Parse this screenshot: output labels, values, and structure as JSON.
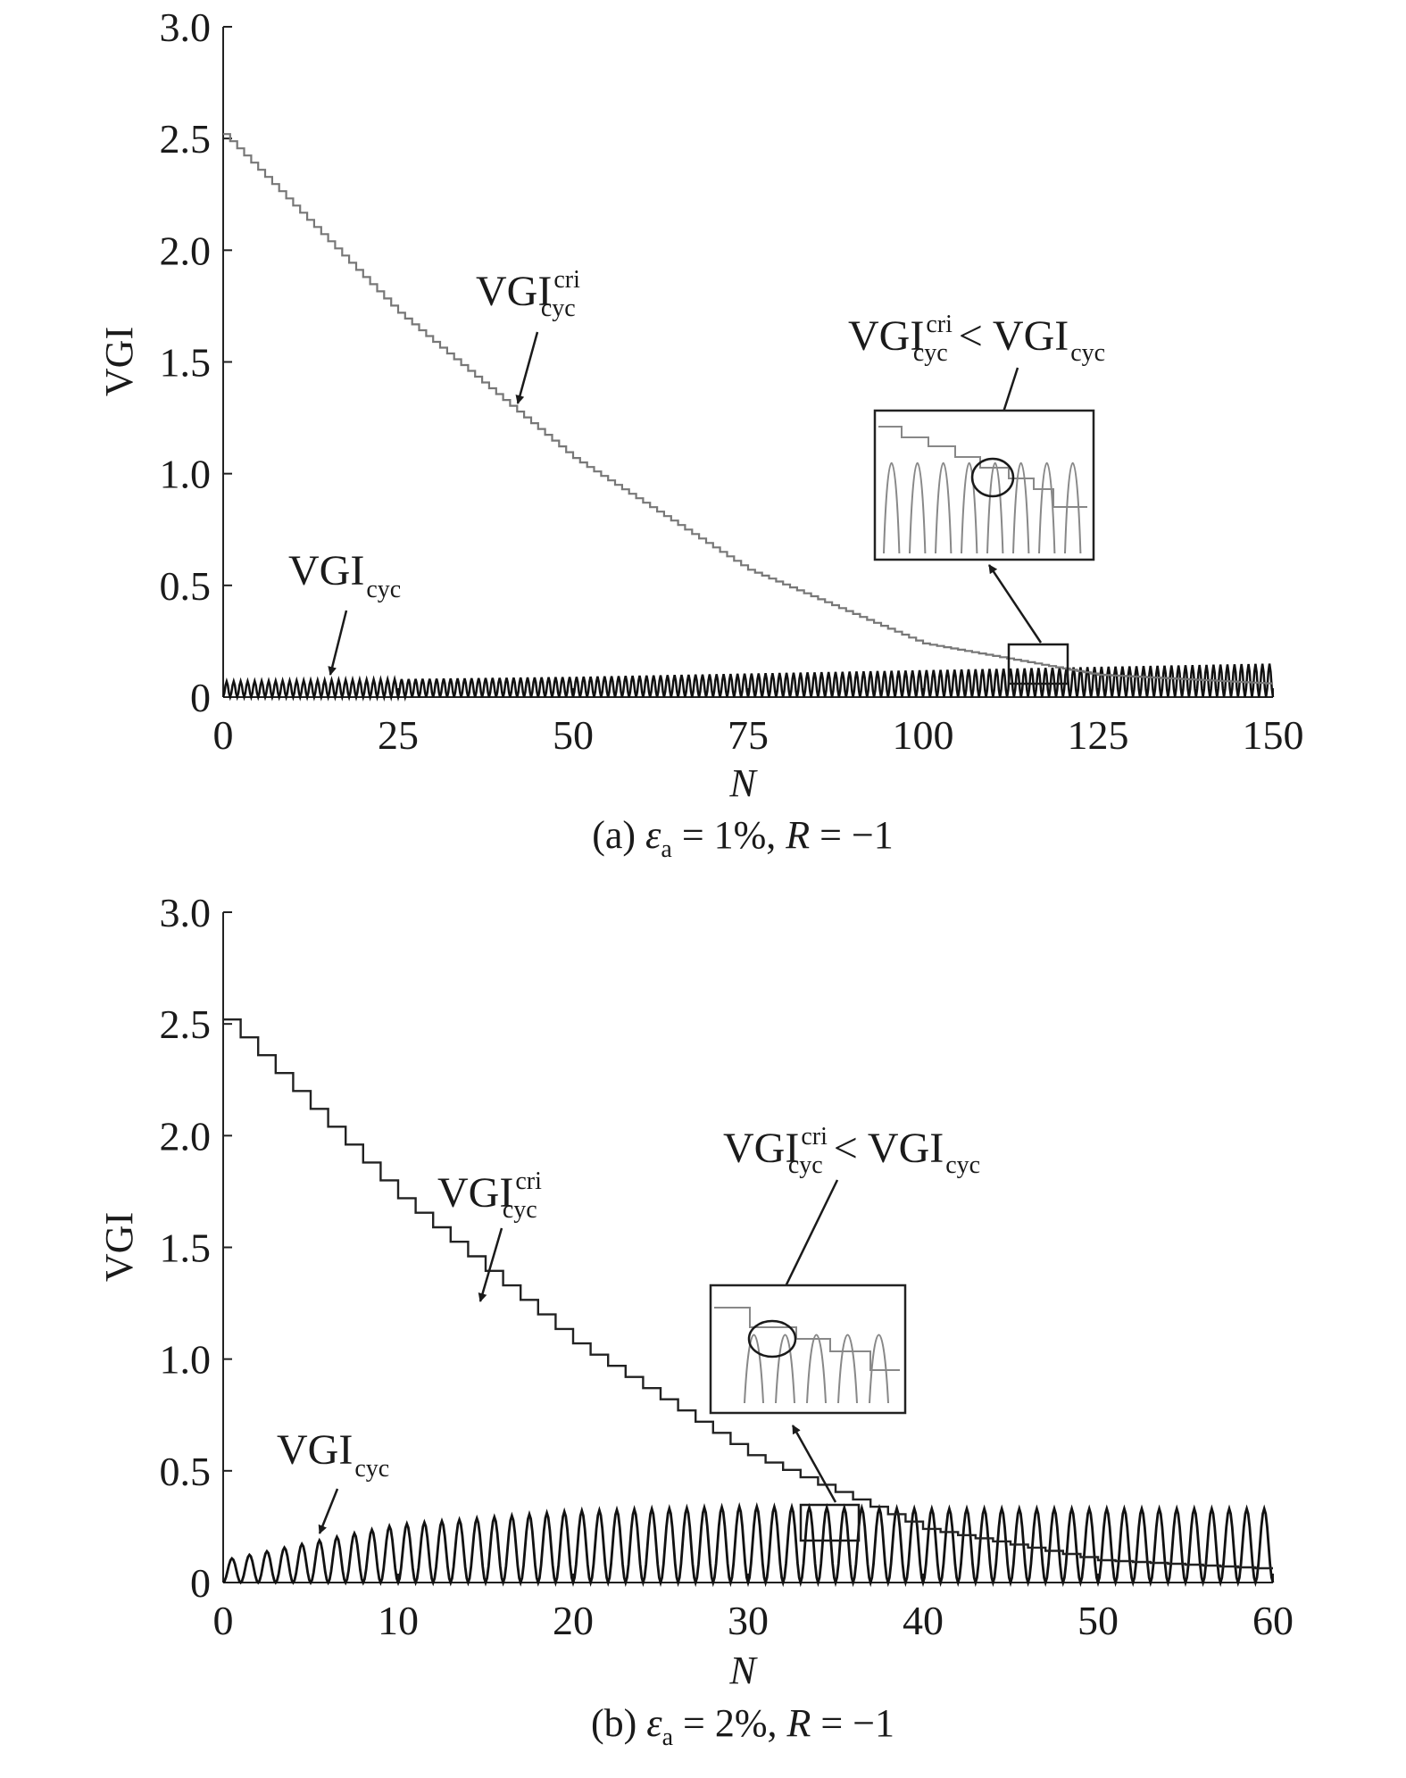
{
  "chart_data": [
    {
      "id": "a",
      "type": "line",
      "caption": {
        "prefix": "(a) ",
        "eps": "ε",
        "eps_sub": "a",
        "mid": " = 1%, ",
        "r": "R",
        "suffix": " = −1"
      },
      "xlabel": "N",
      "ylabel": "VGI",
      "xlim": [
        0,
        150
      ],
      "ylim": [
        0,
        3.0
      ],
      "xticks": [
        "0",
        "25",
        "50",
        "75",
        "100",
        "125",
        "150"
      ],
      "yticks": [
        "0",
        "0.5",
        "1.0",
        "1.5",
        "2.0",
        "2.5",
        "3.0"
      ],
      "series": [
        {
          "label_main": "VGI",
          "label_sup": "cri",
          "label_sub": "cyc",
          "style": "staircase",
          "x": [
            0,
            25,
            50,
            75,
            100,
            125,
            150
          ],
          "y": [
            2.52,
            1.72,
            1.07,
            0.57,
            0.24,
            0.1,
            0.06
          ]
        },
        {
          "label_main": "VGI",
          "label_sub": "cyc",
          "style": "oscillation",
          "amplitude_x": [
            0,
            50,
            100,
            150
          ],
          "amplitude_y": [
            0.07,
            0.09,
            0.12,
            0.15
          ]
        }
      ],
      "annotation": {
        "left_main": "VGI",
        "left_sup": "cri",
        "left_sub": "cyc",
        "op": " < ",
        "right_main": "VGI",
        "right_sub": "cyc"
      }
    },
    {
      "id": "b",
      "type": "line",
      "caption": {
        "prefix": "(b) ",
        "eps": "ε",
        "eps_sub": "a",
        "mid": " = 2%, ",
        "r": "R",
        "suffix": " = −1"
      },
      "xlabel": "N",
      "ylabel": "VGI",
      "xlim": [
        0,
        60
      ],
      "ylim": [
        0,
        3.0
      ],
      "xticks": [
        "0",
        "10",
        "20",
        "30",
        "40",
        "50",
        "60"
      ],
      "yticks": [
        "0",
        "0.5",
        "1.0",
        "1.5",
        "2.0",
        "2.5",
        "3.0"
      ],
      "series": [
        {
          "label_main": "VGI",
          "label_sup": "cri",
          "label_sub": "cyc",
          "style": "staircase",
          "x": [
            0,
            10,
            20,
            30,
            40,
            50,
            60
          ],
          "y": [
            2.52,
            1.72,
            1.07,
            0.57,
            0.24,
            0.1,
            0.06
          ]
        },
        {
          "label_main": "VGI",
          "label_sub": "cyc",
          "style": "oscillation",
          "amplitude_x": [
            0,
            10,
            20,
            30,
            40,
            60
          ],
          "amplitude_y": [
            0.1,
            0.26,
            0.32,
            0.34,
            0.33,
            0.33
          ]
        }
      ],
      "annotation": {
        "left_main": "VGI",
        "left_sup": "cri",
        "left_sub": "cyc",
        "op": " < ",
        "right_main": "VGI",
        "right_sub": "cyc"
      }
    }
  ]
}
